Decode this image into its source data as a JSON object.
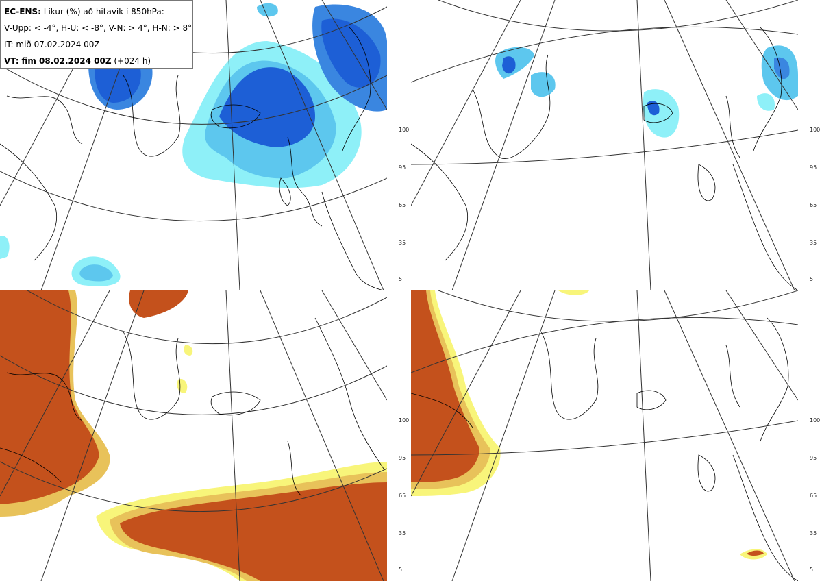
{
  "header": {
    "model": "EC-ENS:",
    "title_rest": "Líkur (%) að hitavik í 850hPa:",
    "thresholds": "V-Upp: < -4°, H-U: < -8°, V-N: > 4°, H-N: > 8°",
    "init_time": "IT: mið 07.02.2024 00Z",
    "valid_label": "VT:",
    "valid_time": "fim 08.02.2024 00Z",
    "lead": "(+024 h)"
  },
  "panels": [
    {
      "id": "top-left",
      "threshold": "V-Upp: < -4°",
      "palette": "blue"
    },
    {
      "id": "top-right",
      "threshold": "H-U: < -8°",
      "palette": "blue"
    },
    {
      "id": "bottom-left",
      "threshold": "V-N: > 4°",
      "palette": "orange"
    },
    {
      "id": "bottom-right",
      "threshold": "H-N: > 8°",
      "palette": "orange"
    }
  ],
  "colorbar": {
    "ticks": [
      "100",
      "95",
      "65",
      "35",
      "5"
    ],
    "blue_colors": [
      "#1d5fd6",
      "#3a86e0",
      "#5dc7ee",
      "#8ef0f8"
    ],
    "orange_colors": [
      "#c4511c",
      "#d98a3a",
      "#e8c25a",
      "#f8f57a"
    ]
  }
}
